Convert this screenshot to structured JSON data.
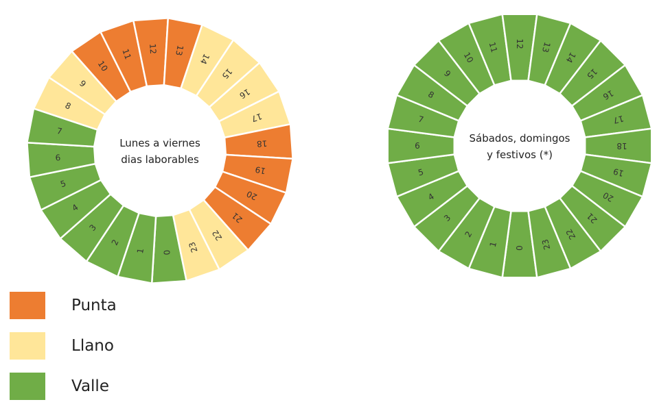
{
  "colors": {
    "punta": "#ED7D31",
    "llano": "#FFE699",
    "valle": "#70AD47",
    "separator": "#ffffff"
  },
  "dials": [
    {
      "title_lines": [
        "Lunes a viernes",
        "dias laborables"
      ],
      "hours": [
        {
          "h": "0",
          "p": "valle"
        },
        {
          "h": "1",
          "p": "valle"
        },
        {
          "h": "2",
          "p": "valle"
        },
        {
          "h": "3",
          "p": "valle"
        },
        {
          "h": "4",
          "p": "valle"
        },
        {
          "h": "5",
          "p": "valle"
        },
        {
          "h": "6",
          "p": "valle"
        },
        {
          "h": "7",
          "p": "valle"
        },
        {
          "h": "8",
          "p": "llano"
        },
        {
          "h": "9",
          "p": "llano"
        },
        {
          "h": "10",
          "p": "punta"
        },
        {
          "h": "11",
          "p": "punta"
        },
        {
          "h": "12",
          "p": "punta"
        },
        {
          "h": "13",
          "p": "punta"
        },
        {
          "h": "14",
          "p": "llano"
        },
        {
          "h": "15",
          "p": "llano"
        },
        {
          "h": "16",
          "p": "llano"
        },
        {
          "h": "17",
          "p": "llano"
        },
        {
          "h": "18",
          "p": "punta"
        },
        {
          "h": "19",
          "p": "punta"
        },
        {
          "h": "20",
          "p": "punta"
        },
        {
          "h": "21",
          "p": "punta"
        },
        {
          "h": "22",
          "p": "llano"
        },
        {
          "h": "23",
          "p": "llano"
        }
      ]
    },
    {
      "title_lines": [
        "Sábados, domingos",
        "y festivos (*)"
      ],
      "hours": [
        {
          "h": "0",
          "p": "valle"
        },
        {
          "h": "1",
          "p": "valle"
        },
        {
          "h": "2",
          "p": "valle"
        },
        {
          "h": "3",
          "p": "valle"
        },
        {
          "h": "4",
          "p": "valle"
        },
        {
          "h": "5",
          "p": "valle"
        },
        {
          "h": "6",
          "p": "valle"
        },
        {
          "h": "7",
          "p": "valle"
        },
        {
          "h": "8",
          "p": "valle"
        },
        {
          "h": "9",
          "p": "valle"
        },
        {
          "h": "10",
          "p": "valle"
        },
        {
          "h": "11",
          "p": "valle"
        },
        {
          "h": "12",
          "p": "valle"
        },
        {
          "h": "13",
          "p": "valle"
        },
        {
          "h": "14",
          "p": "valle"
        },
        {
          "h": "15",
          "p": "valle"
        },
        {
          "h": "16",
          "p": "valle"
        },
        {
          "h": "17",
          "p": "valle"
        },
        {
          "h": "18",
          "p": "valle"
        },
        {
          "h": "19",
          "p": "valle"
        },
        {
          "h": "20",
          "p": "valle"
        },
        {
          "h": "21",
          "p": "valle"
        },
        {
          "h": "22",
          "p": "valle"
        },
        {
          "h": "23",
          "p": "valle"
        }
      ]
    }
  ],
  "legend": [
    {
      "key": "punta",
      "label": "Punta"
    },
    {
      "key": "llano",
      "label": "Llano"
    },
    {
      "key": "valle",
      "label": "Valle"
    }
  ]
}
